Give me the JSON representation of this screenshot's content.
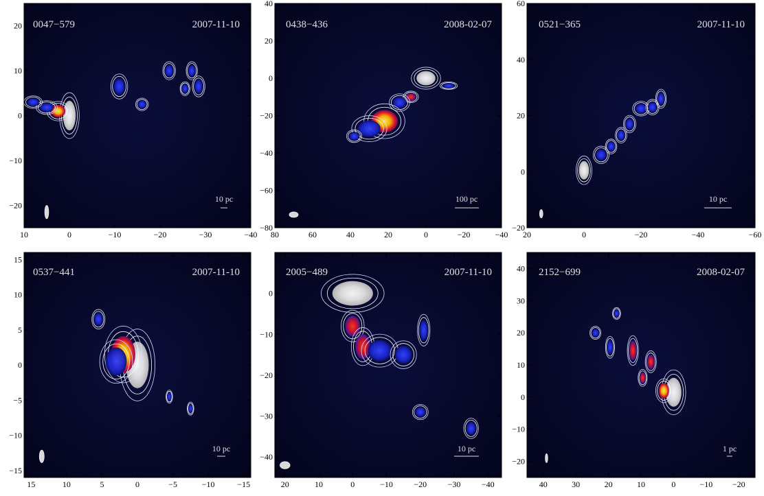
{
  "figure": {
    "panels": [
      {
        "source": "0047−579",
        "date": "2007-11-10",
        "scale_label": "10 pc",
        "x_ticks": [
          "10",
          "0",
          "−10",
          "−20",
          "−30",
          "−40"
        ],
        "y_ticks": [
          "20",
          "10",
          "0",
          "−10",
          "−20"
        ],
        "x_range": [
          10,
          -40
        ],
        "y_range": [
          -25,
          25
        ],
        "beam": {
          "x": 5,
          "y": -21.5,
          "rx": 0.45,
          "ry": 1.5
        }
      },
      {
        "source": "0438−436",
        "date": "2008-02-07",
        "scale_label": "100 pc",
        "x_ticks": [
          "80",
          "60",
          "40",
          "20",
          "0",
          "−20",
          "−40"
        ],
        "y_ticks": [
          "40",
          "20",
          "0",
          "−20",
          "−40",
          "−60",
          "−80"
        ],
        "x_range": [
          80,
          -40
        ],
        "y_range": [
          -80,
          40
        ],
        "beam": {
          "x": 70,
          "y": -73,
          "rx": 2.4,
          "ry": 1.5
        }
      },
      {
        "source": "0521−365",
        "date": "2007-11-10",
        "scale_label": "10 pc",
        "x_ticks": [
          "20",
          "0",
          "−20",
          "−40",
          "−60"
        ],
        "y_ticks": [
          "60",
          "40",
          "20",
          "0",
          "−20"
        ],
        "x_range": [
          20,
          -60
        ],
        "y_range": [
          -20,
          60
        ],
        "beam": {
          "x": 15,
          "y": -15,
          "rx": 0.6,
          "ry": 1.5
        }
      },
      {
        "source": "0537−441",
        "date": "2007-11-10",
        "scale_label": "10 pc",
        "x_ticks": [
          "15",
          "10",
          "5",
          "0",
          "−5",
          "−10",
          "−15"
        ],
        "y_ticks": [
          "15",
          "10",
          "5",
          "0",
          "−5",
          "−10",
          "−15"
        ],
        "x_range": [
          16,
          -16
        ],
        "y_range": [
          -16,
          16
        ],
        "beam": {
          "x": 13.5,
          "y": -13,
          "rx": 0.35,
          "ry": 0.9
        }
      },
      {
        "source": "2005−489",
        "date": "2007-11-10",
        "scale_label": "10 pc",
        "x_ticks": [
          "20",
          "10",
          "0",
          "−10",
          "−20",
          "−30",
          "−40"
        ],
        "y_ticks": [
          "0",
          "−10",
          "−20",
          "−30",
          "−40"
        ],
        "x_range": [
          23,
          -44
        ],
        "y_range": [
          -45,
          10
        ],
        "beam": {
          "x": 20,
          "y": -42,
          "rx": 1.5,
          "ry": 0.9
        }
      },
      {
        "source": "2152−699",
        "date": "2008-02-07",
        "scale_label": "1 pc",
        "x_ticks": [
          "40",
          "30",
          "20",
          "10",
          "0",
          "−10",
          "−20"
        ],
        "y_ticks": [
          "40",
          "30",
          "20",
          "10",
          "0",
          "−10",
          "−20"
        ],
        "x_range": [
          45,
          -25
        ],
        "y_range": [
          -25,
          45
        ],
        "beam": {
          "x": 39,
          "y": -19,
          "rx": 0.4,
          "ry": 1.4
        }
      }
    ]
  }
}
